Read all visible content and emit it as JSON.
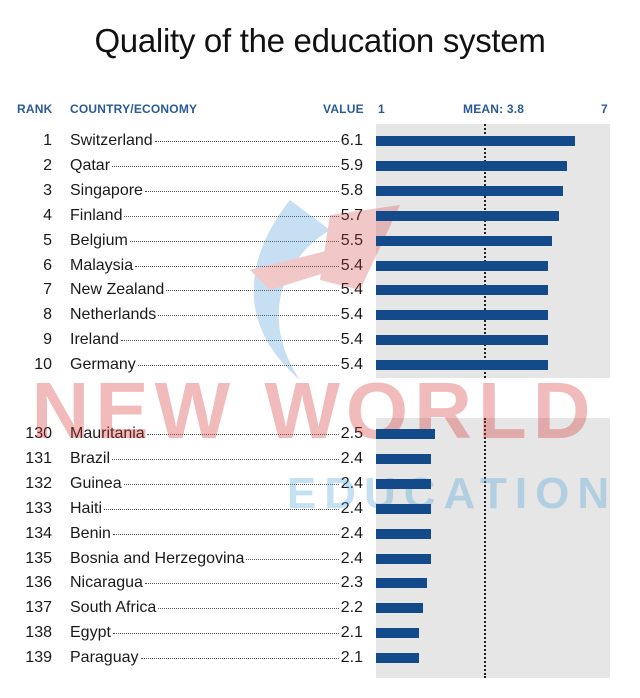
{
  "title": "Quality of the education system",
  "headers": {
    "rank": "RANK",
    "country": "COUNTRY/ECONOMY",
    "value": "VALUE",
    "scale_min": "1",
    "mean": "MEAN: 3.8",
    "scale_max": "7"
  },
  "watermark": {
    "line1": "NEW WORLD",
    "line2": "EDUCATION"
  },
  "colors": {
    "bar": "#134a8a",
    "header": "#2a5b94",
    "panel": "#e6e6e6"
  },
  "chart_data": {
    "type": "bar",
    "orientation": "horizontal",
    "title": "Quality of the education system",
    "xlim": [
      1,
      7
    ],
    "mean": 3.8,
    "groups": [
      {
        "rows": [
          {
            "rank": "1",
            "country": "Switzerland",
            "value": 6.1,
            "value_label": "6.1"
          },
          {
            "rank": "2",
            "country": "Qatar",
            "value": 5.9,
            "value_label": "5.9"
          },
          {
            "rank": "3",
            "country": "Singapore",
            "value": 5.8,
            "value_label": "5.8"
          },
          {
            "rank": "4",
            "country": "Finland",
            "value": 5.7,
            "value_label": "5.7"
          },
          {
            "rank": "5",
            "country": "Belgium",
            "value": 5.5,
            "value_label": "5.5"
          },
          {
            "rank": "6",
            "country": "Malaysia",
            "value": 5.4,
            "value_label": "5.4"
          },
          {
            "rank": "7",
            "country": "New Zealand",
            "value": 5.4,
            "value_label": "5.4"
          },
          {
            "rank": "8",
            "country": "Netherlands",
            "value": 5.4,
            "value_label": "5.4"
          },
          {
            "rank": "9",
            "country": "Ireland",
            "value": 5.4,
            "value_label": "5.4"
          },
          {
            "rank": "10",
            "country": "Germany",
            "value": 5.4,
            "value_label": "5.4"
          }
        ]
      },
      {
        "rows": [
          {
            "rank": "130",
            "country": "Mauritania",
            "value": 2.5,
            "value_label": "2.5"
          },
          {
            "rank": "131",
            "country": "Brazil",
            "value": 2.4,
            "value_label": "2.4"
          },
          {
            "rank": "132",
            "country": "Guinea",
            "value": 2.4,
            "value_label": "2.4"
          },
          {
            "rank": "133",
            "country": "Haiti",
            "value": 2.4,
            "value_label": "2.4"
          },
          {
            "rank": "134",
            "country": "Benin",
            "value": 2.4,
            "value_label": "2.4"
          },
          {
            "rank": "135",
            "country": "Bosnia and Herzegovina",
            "value": 2.4,
            "value_label": "2.4"
          },
          {
            "rank": "136",
            "country": "Nicaragua",
            "value": 2.3,
            "value_label": "2.3"
          },
          {
            "rank": "137",
            "country": "South Africa",
            "value": 2.2,
            "value_label": "2.2"
          },
          {
            "rank": "138",
            "country": "Egypt",
            "value": 2.1,
            "value_label": "2.1"
          },
          {
            "rank": "139",
            "country": "Paraguay",
            "value": 2.1,
            "value_label": "2.1"
          }
        ]
      }
    ]
  }
}
